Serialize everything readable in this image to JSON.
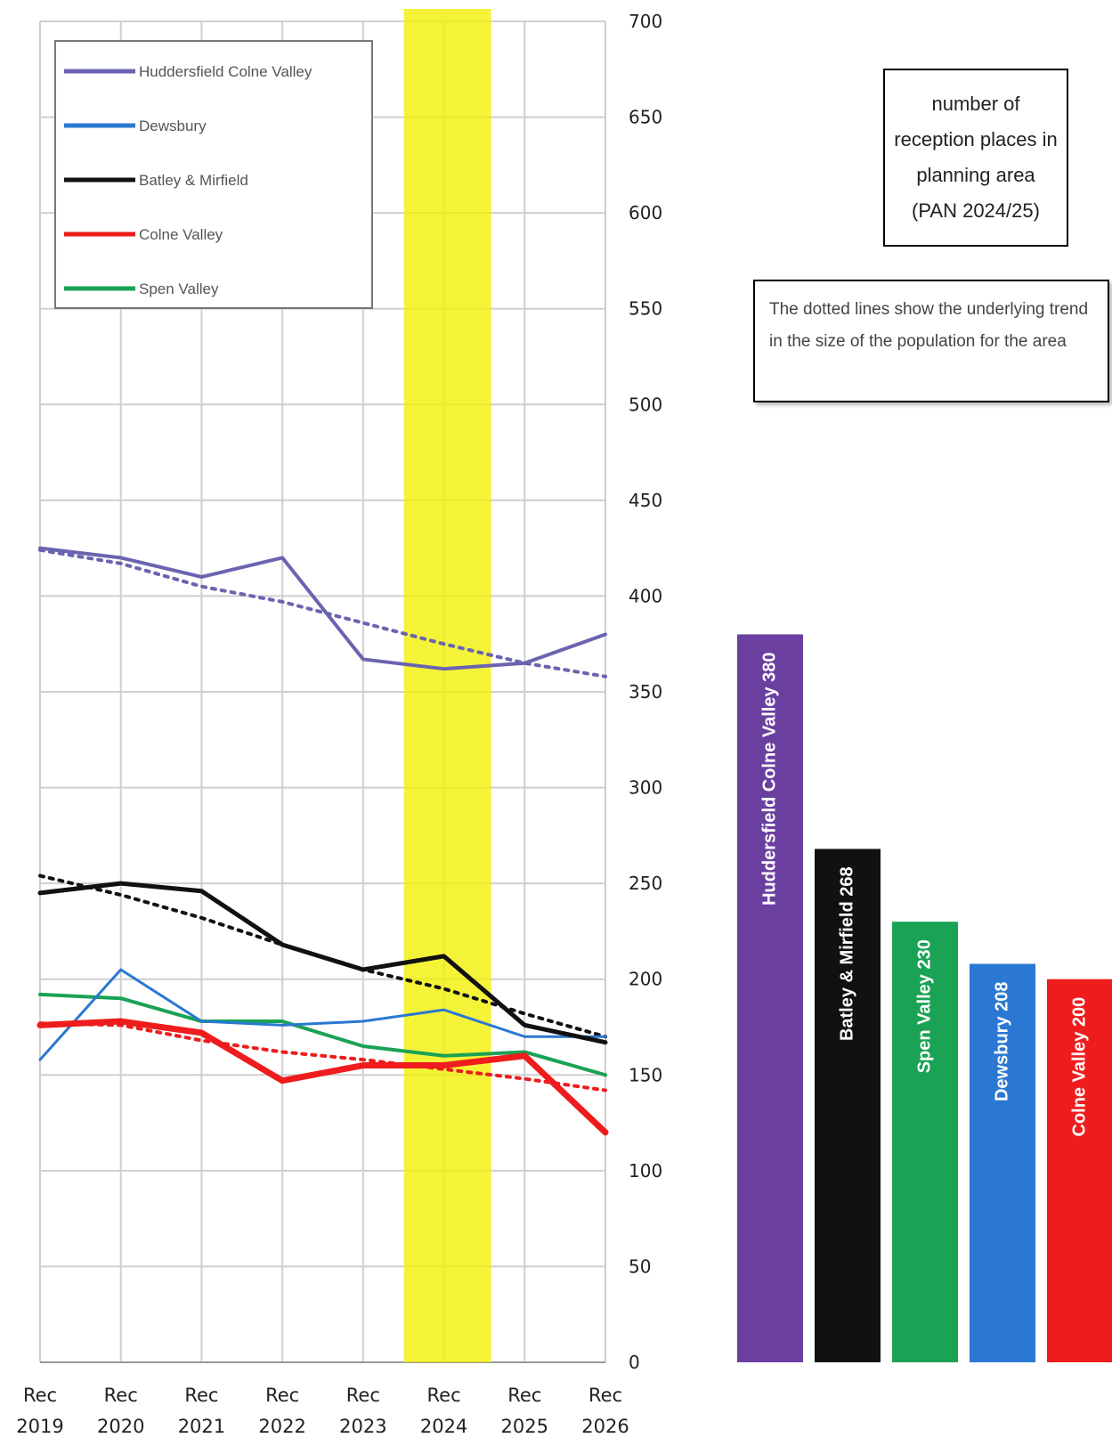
{
  "chart_data": [
    {
      "type": "line",
      "x": [
        "Rec 2019",
        "Rec 2020",
        "Rec 2021",
        "Rec 2022",
        "Rec 2023",
        "Rec 2024",
        "Rec 2025",
        "Rec 2026"
      ],
      "x_line1": [
        "Rec",
        "Rec",
        "Rec",
        "Rec",
        "Rec",
        "Rec",
        "Rec",
        "Rec"
      ],
      "x_line2": [
        "2019",
        "2020",
        "2021",
        "2022",
        "2023",
        "2024",
        "2025",
        "2026"
      ],
      "ylim": [
        0,
        700
      ],
      "yticks": [
        0,
        50,
        100,
        150,
        200,
        250,
        300,
        350,
        400,
        450,
        500,
        550,
        600,
        650,
        700
      ],
      "ytick_labels": [
        "0",
        "50",
        "100",
        "150",
        "200",
        "250",
        "300",
        "350",
        "400",
        "450",
        "500",
        "550",
        "600",
        "650",
        "700"
      ],
      "y_axis_side": "right",
      "grid": true,
      "legend_position": "top-left",
      "highlight_band": {
        "category": "Rec 2024",
        "color": "#f2f000"
      },
      "series": [
        {
          "name": "Huddersfield Colne Valley",
          "color": "#6a64b0",
          "values": [
            425,
            420,
            410,
            420,
            367,
            362,
            365,
            380
          ],
          "trend": [
            424,
            417,
            405,
            397,
            386,
            375,
            365,
            358
          ]
        },
        {
          "name": "Dewsbury",
          "color": "#2a78d2",
          "values": [
            158,
            205,
            178,
            176,
            178,
            184,
            170,
            170
          ],
          "trend": null
        },
        {
          "name": "Batley & Mirfield",
          "color": "#111111",
          "values": [
            245,
            250,
            246,
            218,
            205,
            212,
            176,
            167
          ],
          "trend": [
            254,
            244,
            232,
            218,
            205,
            195,
            182,
            170
          ]
        },
        {
          "name": "Colne Valley",
          "color": "#ee1c1c",
          "values": [
            176,
            178,
            172,
            147,
            155,
            155,
            160,
            120
          ],
          "trend": [
            177,
            176,
            168,
            162,
            158,
            153,
            148,
            142
          ]
        },
        {
          "name": "Spen Valley",
          "color": "#1aa255",
          "values": [
            192,
            190,
            178,
            178,
            165,
            160,
            162,
            150
          ],
          "trend": null
        }
      ]
    },
    {
      "type": "bar",
      "orientation": "vertical",
      "ylim": [
        0,
        700
      ],
      "bars": [
        {
          "label": "Huddersfield Colne Valley 380",
          "value": 380,
          "color": "#6b3fa0"
        },
        {
          "label": "Batley & Mirfield 268",
          "value": 268,
          "color": "#111111"
        },
        {
          "label": "Spen Valley 230",
          "value": 230,
          "color": "#1aa255"
        },
        {
          "label": "Dewsbury 208",
          "value": 208,
          "color": "#2a78d2"
        },
        {
          "label": "Colne Valley 200",
          "value": 200,
          "color": "#ee1c1c"
        }
      ]
    }
  ],
  "notes": {
    "places_box": "number of reception places in planning area (PAN 2024/25)",
    "dotted_box": "The dotted lines show the underlying trend in the size of the population for the area"
  }
}
